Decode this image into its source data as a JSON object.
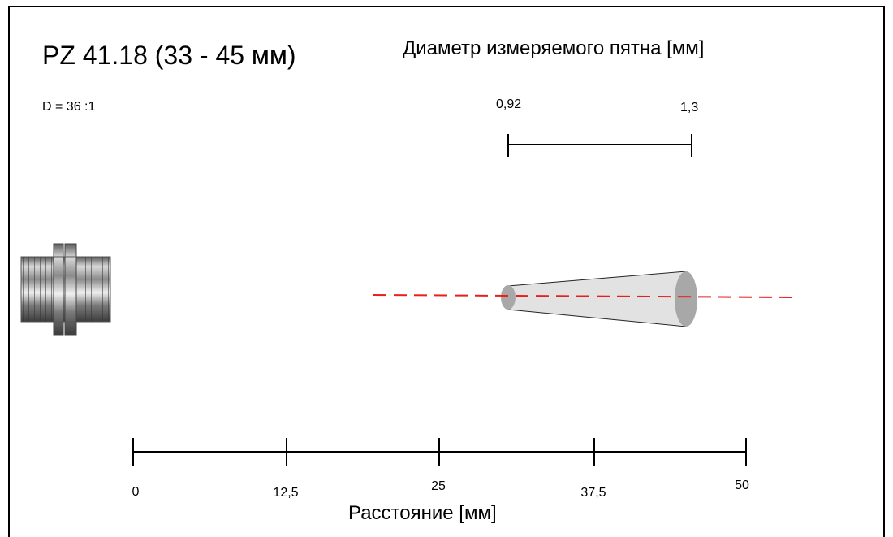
{
  "title": "PZ 41.18 (33 - 45 мм)",
  "spot_heading": "Диаметр измеряемого пятна [мм]",
  "ratio": "D = 36 :1",
  "spot_sizes": {
    "near": "0,92",
    "far": "1,3"
  },
  "axis": {
    "label": "Расстояние [мм]",
    "ticks": [
      "0",
      "12,5",
      "25",
      "37,5",
      "50"
    ]
  },
  "colors": {
    "beam_axis": "#e8201c",
    "cone_fill": "#e2e2e2",
    "ellipse_fill": "#a8a8a8"
  },
  "icons": {
    "sensor": "sensor-thread-icon"
  }
}
